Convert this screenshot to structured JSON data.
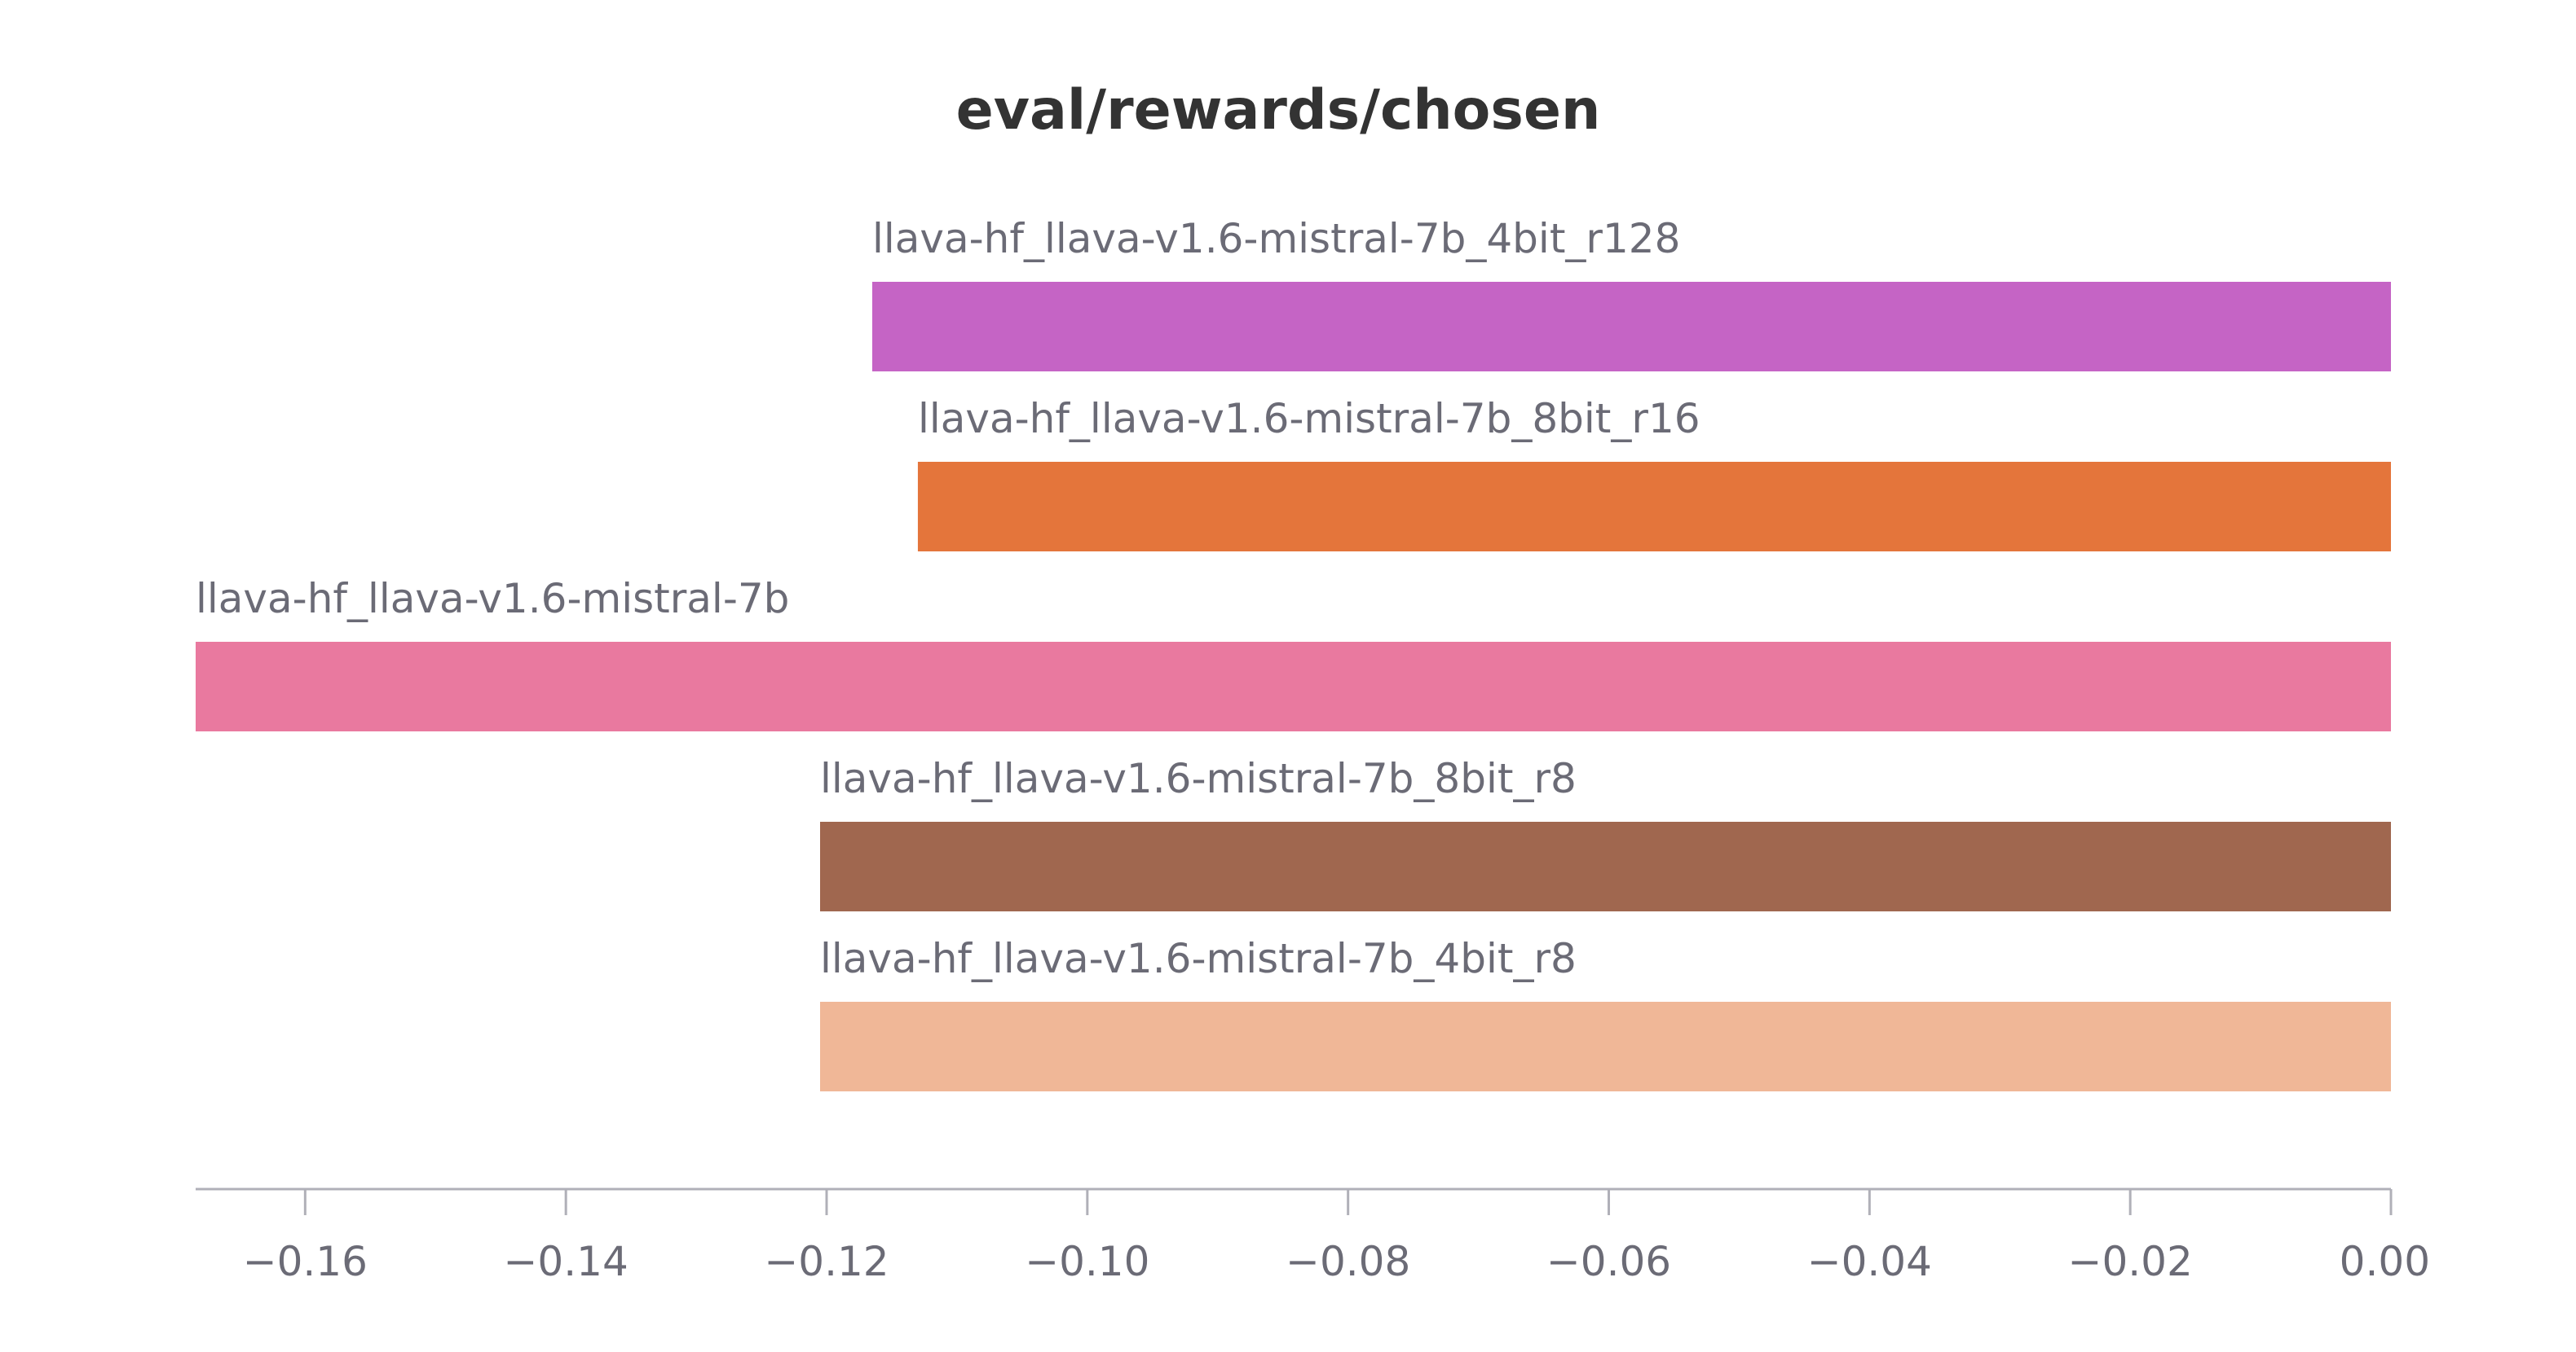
{
  "chart_data": {
    "type": "bar",
    "orientation": "horizontal",
    "title": "eval/rewards/chosen",
    "xlabel": "",
    "ylabel": "",
    "xlim": [
      -0.1684,
      0.0
    ],
    "grid": false,
    "legend": "none",
    "categories": [
      "llava-hf_llava-v1.6-mistral-7b_4bit_r128",
      "llava-hf_llava-v1.6-mistral-7b_8bit_r16",
      "llava-hf_llava-v1.6-mistral-7b",
      "llava-hf_llava-v1.6-mistral-7b_8bit_r8",
      "llava-hf_llava-v1.6-mistral-7b_4bit_r8"
    ],
    "values": [
      -0.1165,
      -0.113,
      -0.1684,
      -0.1205,
      -0.1205
    ],
    "colors": [
      "#c564c5",
      "#e4753b",
      "#e9799f",
      "#a0674f",
      "#f0b797"
    ],
    "x_ticks": [
      -0.16,
      -0.14,
      -0.12,
      -0.1,
      -0.08,
      -0.06,
      -0.04,
      -0.02,
      0.0
    ],
    "x_tick_labels": [
      "−0.16",
      "−0.14",
      "−0.12",
      "−0.10",
      "−0.08",
      "−0.06",
      "−0.04",
      "−0.02",
      "0.00"
    ]
  }
}
